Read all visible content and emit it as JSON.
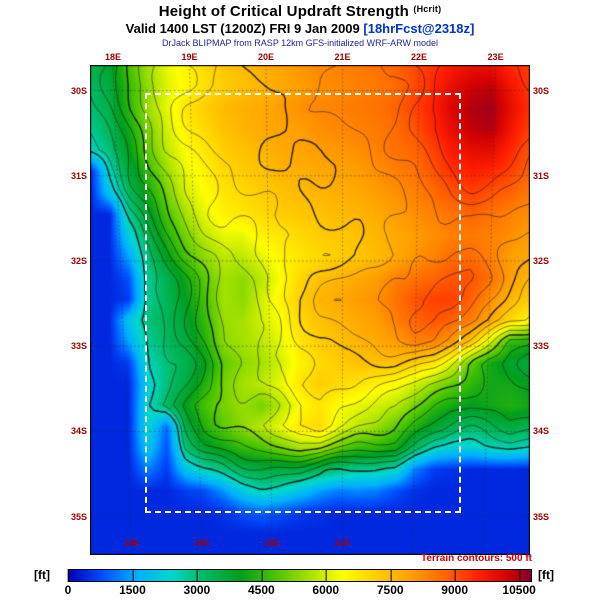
{
  "header": {
    "title": "Height of Critical Updraft Strength",
    "title_suffix": "(Hcrit)",
    "valid_line": "Valid 1400 LST (1200Z) FRI 9 Jan 2009",
    "forecast_tag": "[18hrFcst@2318z]",
    "model_line": "DrJack BLIPMAP from RASP 12km GFS-initialized WRF-ARW model"
  },
  "map": {
    "top_labels": [
      "18E",
      "19E",
      "20E",
      "21E",
      "22E",
      "23E"
    ],
    "bottom_labels": [
      "18E",
      "19E",
      "20E",
      "21E"
    ],
    "left_labels": [
      "30S",
      "31S",
      "32S",
      "33S",
      "34S",
      "35S"
    ],
    "right_labels": [
      "30S",
      "31S",
      "32S",
      "33S",
      "34S",
      "35S"
    ]
  },
  "footer": {
    "terrain_note": "Terrain contours: 500 ft",
    "unit_left": "[ft]",
    "unit_right": "[ft]",
    "ticks": [
      "0",
      "1500",
      "3000",
      "4500",
      "6000",
      "7500",
      "9000",
      "10500"
    ]
  },
  "chart_data": {
    "type": "heatmap",
    "title": "Height of Critical Updraft Strength (Hcrit)",
    "units": "ft",
    "lon_range_E": [
      17.7,
      23.45
    ],
    "lat_range_S": [
      29.7,
      35.45
    ],
    "lon_ticks": [
      18,
      19,
      20,
      21,
      22,
      23
    ],
    "lat_ticks": [
      30,
      31,
      32,
      33,
      34,
      35
    ],
    "grid_values_unit_ft": 100,
    "values": [
      [
        34,
        38,
        48,
        56,
        62,
        66,
        70,
        73,
        75,
        77,
        79,
        81,
        83,
        84,
        85,
        86,
        88,
        91,
        94,
        97,
        99,
        99,
        95,
        92
      ],
      [
        32,
        36,
        46,
        54,
        61,
        65,
        69,
        72,
        74,
        76,
        78,
        80,
        82,
        83,
        84,
        85,
        87,
        91,
        95,
        100,
        103,
        104,
        98,
        93
      ],
      [
        30,
        35,
        45,
        55,
        62,
        68,
        72,
        75,
        77,
        78,
        80,
        82,
        83,
        84,
        85,
        86,
        88,
        92,
        96,
        102,
        105,
        106,
        100,
        94
      ],
      [
        28,
        33,
        42,
        52,
        60,
        66,
        70,
        74,
        76,
        78,
        79,
        80,
        82,
        83,
        84,
        85,
        87,
        90,
        95,
        100,
        104,
        105,
        98,
        92
      ],
      [
        25,
        30,
        40,
        50,
        58,
        64,
        68,
        72,
        74,
        76,
        78,
        79,
        80,
        81,
        82,
        84,
        86,
        88,
        92,
        97,
        100,
        100,
        95,
        90
      ],
      [
        4,
        25,
        36,
        46,
        55,
        62,
        66,
        70,
        72,
        74,
        76,
        77,
        78,
        79,
        80,
        82,
        84,
        86,
        90,
        94,
        96,
        95,
        92,
        88
      ],
      [
        4,
        20,
        32,
        42,
        52,
        60,
        64,
        68,
        70,
        72,
        74,
        75,
        76,
        77,
        78,
        80,
        82,
        84,
        87,
        90,
        92,
        90,
        88,
        85
      ],
      [
        4,
        4,
        28,
        38,
        48,
        56,
        62,
        66,
        68,
        70,
        72,
        73,
        74,
        75,
        76,
        78,
        80,
        82,
        84,
        86,
        88,
        86,
        84,
        82
      ],
      [
        4,
        4,
        22,
        34,
        44,
        52,
        58,
        62,
        62,
        66,
        68,
        70,
        72,
        73,
        74,
        76,
        78,
        80,
        82,
        84,
        85,
        84,
        82,
        80
      ],
      [
        4,
        4,
        15,
        30,
        40,
        48,
        54,
        58,
        58,
        62,
        66,
        68,
        70,
        72,
        73,
        75,
        78,
        81,
        84,
        87,
        87,
        84,
        80,
        78
      ],
      [
        4,
        4,
        8,
        28,
        34,
        42,
        50,
        56,
        54,
        58,
        64,
        70,
        74,
        76,
        78,
        80,
        84,
        86,
        88,
        90,
        90,
        86,
        80,
        76
      ],
      [
        4,
        4,
        6,
        28,
        33,
        40,
        48,
        56,
        54,
        60,
        66,
        72,
        76,
        78,
        80,
        82,
        86,
        90,
        92,
        92,
        88,
        82,
        76,
        72
      ],
      [
        4,
        4,
        20,
        30,
        33,
        38,
        46,
        55,
        56,
        60,
        64,
        70,
        74,
        76,
        78,
        80,
        84,
        88,
        90,
        88,
        84,
        78,
        70,
        65
      ],
      [
        4,
        4,
        15,
        28,
        32,
        36,
        44,
        54,
        56,
        58,
        62,
        68,
        72,
        74,
        76,
        78,
        80,
        84,
        84,
        80,
        72,
        60,
        46,
        44
      ],
      [
        4,
        4,
        6,
        25,
        30,
        34,
        40,
        50,
        54,
        56,
        60,
        66,
        70,
        72,
        74,
        74,
        74,
        72,
        68,
        60,
        50,
        42,
        38,
        36
      ],
      [
        4,
        4,
        4,
        22,
        30,
        36,
        44,
        52,
        56,
        58,
        62,
        68,
        72,
        70,
        68,
        66,
        64,
        60,
        55,
        50,
        45,
        42,
        42,
        40
      ],
      [
        4,
        4,
        4,
        24,
        32,
        40,
        48,
        52,
        55,
        52,
        58,
        64,
        68,
        64,
        62,
        60,
        58,
        52,
        46,
        42,
        40,
        42,
        44,
        42
      ],
      [
        4,
        4,
        4,
        24,
        10,
        35,
        44,
        50,
        54,
        58,
        62,
        68,
        70,
        62,
        58,
        55,
        50,
        44,
        38,
        34,
        32,
        34,
        36,
        34
      ],
      [
        4,
        4,
        4,
        20,
        8,
        30,
        38,
        42,
        46,
        48,
        52,
        56,
        56,
        50,
        46,
        45,
        42,
        32,
        25,
        22,
        22,
        25,
        26,
        24
      ],
      [
        4,
        4,
        4,
        12,
        6,
        20,
        26,
        30,
        34,
        36,
        36,
        36,
        34,
        30,
        28,
        28,
        25,
        12,
        6,
        5,
        4,
        4,
        4,
        4
      ],
      [
        4,
        4,
        4,
        4,
        4,
        6,
        8,
        14,
        22,
        26,
        24,
        20,
        15,
        12,
        13,
        12,
        8,
        5,
        4,
        4,
        4,
        4,
        4,
        4
      ],
      [
        4,
        4,
        4,
        4,
        4,
        4,
        4,
        5,
        8,
        10,
        8,
        6,
        5,
        4,
        4,
        4,
        4,
        4,
        4,
        4,
        4,
        4,
        4,
        4
      ],
      [
        4,
        4,
        4,
        4,
        4,
        4,
        4,
        4,
        4,
        4,
        4,
        4,
        4,
        4,
        4,
        4,
        4,
        4,
        4,
        4,
        4,
        4,
        4,
        4
      ],
      [
        4,
        4,
        4,
        4,
        4,
        4,
        4,
        4,
        4,
        4,
        4,
        4,
        4,
        4,
        4,
        4,
        4,
        4,
        4,
        4,
        4,
        4,
        4,
        4
      ]
    ],
    "colormap": [
      [
        0,
        0,
        0,
        190
      ],
      [
        800,
        0,
        80,
        255
      ],
      [
        1600,
        0,
        175,
        255
      ],
      [
        2400,
        0,
        215,
        205
      ],
      [
        3200,
        0,
        185,
        95
      ],
      [
        4000,
        0,
        158,
        30
      ],
      [
        4800,
        70,
        195,
        0
      ],
      [
        5600,
        165,
        225,
        0
      ],
      [
        6400,
        255,
        255,
        0
      ],
      [
        7200,
        255,
        205,
        0
      ],
      [
        8000,
        255,
        158,
        0
      ],
      [
        8800,
        255,
        100,
        0
      ],
      [
        9600,
        255,
        30,
        0
      ],
      [
        10300,
        208,
        0,
        0
      ],
      [
        10800,
        128,
        0,
        45
      ]
    ],
    "colorbar": {
      "min": 0,
      "max": 10800,
      "ticks": [
        0,
        1500,
        3000,
        4500,
        6000,
        7500,
        9000,
        10500
      ]
    },
    "contours": {
      "interval_ft": 500,
      "levels_min": 2500,
      "levels_max": 9500,
      "thick_every_ft": 2500
    },
    "inner_domain_box": {
      "lon": [
        18.42,
        22.5
      ],
      "lat": [
        30.03,
        34.91
      ]
    }
  }
}
